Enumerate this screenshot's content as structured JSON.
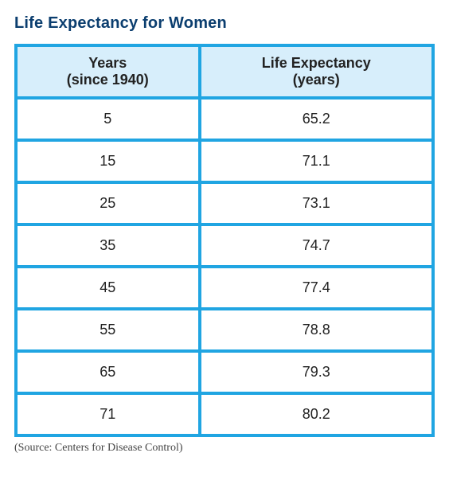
{
  "title": "Life Expectancy for Women",
  "table": {
    "type": "table",
    "border_color": "#20a5e2",
    "header_bg": "#d7eefb",
    "background_color": "#ffffff",
    "text_color": "#222222",
    "title_color": "#0b3e6f",
    "border_width": 4,
    "title_fontsize": 20,
    "cell_fontsize": 18,
    "columns": [
      {
        "label_main": "Years",
        "label_sub": "(since 1940)",
        "width_pct": 44,
        "align": "center"
      },
      {
        "label_main": "Life Expectancy",
        "label_sub": "(years)",
        "width_pct": 56,
        "align": "center"
      }
    ],
    "rows": [
      [
        "5",
        "65.2"
      ],
      [
        "15",
        "71.1"
      ],
      [
        "25",
        "73.1"
      ],
      [
        "35",
        "74.7"
      ],
      [
        "45",
        "77.4"
      ],
      [
        "55",
        "78.8"
      ],
      [
        "65",
        "79.3"
      ],
      [
        "71",
        "80.2"
      ]
    ]
  },
  "source": "(Source: Centers for Disease Control)"
}
